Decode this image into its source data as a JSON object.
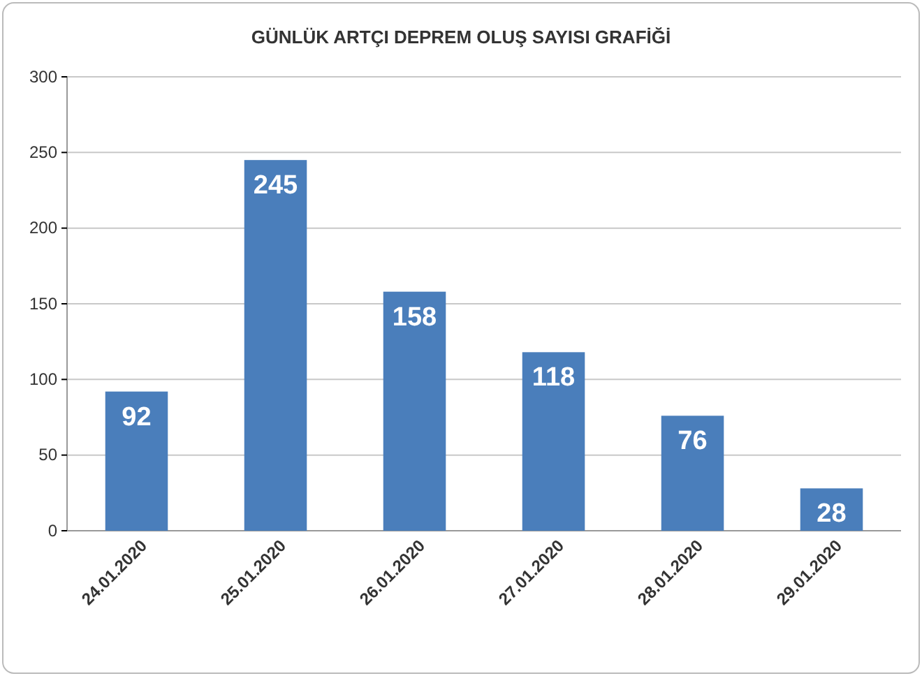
{
  "chart_data": {
    "type": "bar",
    "title": "GÜNLÜK ARTÇI DEPREM OLUŞ SAYISI GRAFİĞİ",
    "categories": [
      "24.01.2020",
      "25.01.2020",
      "26.01.2020",
      "27.01.2020",
      "28.01.2020",
      "29.01.2020"
    ],
    "values": [
      92,
      245,
      158,
      118,
      76,
      28
    ],
    "color": "#4a7ebb",
    "ylim": [
      0,
      300
    ],
    "yticks": [
      0,
      50,
      100,
      150,
      200,
      250,
      300
    ],
    "grid": "y",
    "data_labels": true
  }
}
